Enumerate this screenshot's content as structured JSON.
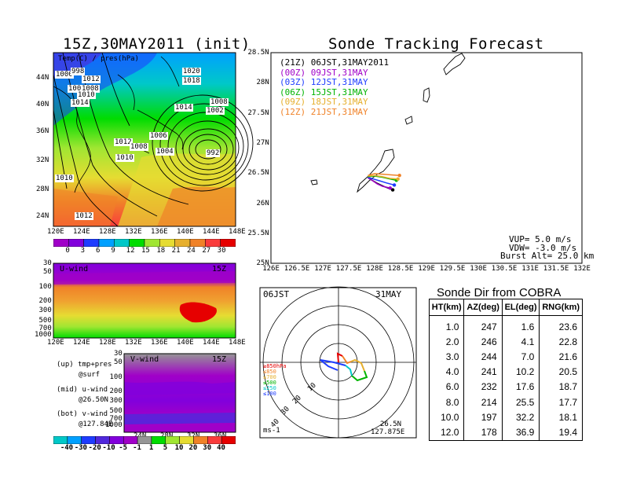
{
  "map_panel": {
    "title": "15Z,30MAY2011 (init)",
    "label": "Temp(C) / pres(hPa)",
    "isobar_labels": [
      "1000",
      "998",
      "1012",
      "1006",
      "1008",
      "1010",
      "1014",
      "1020",
      "1018",
      "1014",
      "1008",
      "1002",
      "992",
      "1012",
      "1008",
      "1006",
      "1004",
      "1010",
      "1010",
      "1012"
    ],
    "lat_ticks": [
      "44N",
      "40N",
      "36N",
      "32N",
      "28N",
      "24N"
    ],
    "lon_ticks": [
      "120E",
      "124E",
      "128E",
      "132E",
      "136E",
      "140E",
      "144E",
      "148E"
    ],
    "colorbar_labels": [
      "0",
      "3",
      "6",
      "9",
      "12",
      "15",
      "18",
      "21",
      "24",
      "27",
      "30"
    ],
    "colorbar_colors": [
      "#a000c8",
      "#8200dc",
      "#1e3cff",
      "#00a0ff",
      "#00c8c8",
      "#00dc00",
      "#a0e632",
      "#e6dc32",
      "#e6af2d",
      "#f08228",
      "#fa3c3c",
      "#e60000"
    ]
  },
  "uwind_panel": {
    "label": "U-wind",
    "time": "15Z",
    "pres_ticks": [
      "30",
      "50",
      "100",
      "200",
      "300",
      "500",
      "700",
      "1000"
    ],
    "lon_ticks": [
      "120E",
      "124E",
      "128E",
      "132E",
      "136E",
      "140E",
      "144E",
      "148E"
    ]
  },
  "vwind_panel": {
    "label": "V-wind",
    "time": "15Z",
    "pres_ticks": [
      "30",
      "50",
      "100",
      "200",
      "300",
      "500",
      "700",
      "1000"
    ],
    "lat_ticks": [
      "24N",
      "28N",
      "32N",
      "36N"
    ]
  },
  "legend_notes": [
    "(up) tmp+pres",
    "@surf",
    "(mid) u-wind",
    "@26.50N",
    "(bot) v-wind",
    "@127.84E"
  ],
  "wind_colorbar": {
    "labels": [
      "-40",
      "-30",
      "-20",
      "-10",
      "-5",
      "-1",
      "1",
      "5",
      "10",
      "20",
      "30",
      "40"
    ],
    "colors": [
      "#00c8c8",
      "#00a0ff",
      "#1e3cff",
      "#5028dc",
      "#8200dc",
      "#a000c8",
      "#969696",
      "#00dc00",
      "#a0e632",
      "#e6dc32",
      "#f08228",
      "#fa3c3c",
      "#e60000"
    ]
  },
  "tracking_panel": {
    "title": "Sonde Tracking Forecast",
    "lat_ticks": [
      "28.5N",
      "28N",
      "27.5N",
      "27N",
      "26.5N",
      "26N",
      "25.5N",
      "25N"
    ],
    "lon_ticks": [
      "126E",
      "126.5E",
      "127E",
      "127.5E",
      "128E",
      "128.5E",
      "129E",
      "129.5E",
      "130E",
      "130.5E",
      "131E",
      "131.5E",
      "132E"
    ],
    "legend": [
      {
        "text": "(21Z) 06JST,31MAY2011",
        "color": "#000000"
      },
      {
        "text": "(00Z) 09JST,31MAY",
        "color": "#a000c8"
      },
      {
        "text": "(03Z) 12JST,31MAY",
        "color": "#1e3cff"
      },
      {
        "text": "(06Z) 15JST,31MAY",
        "color": "#00b400"
      },
      {
        "text": "(09Z) 18JST,31MAY",
        "color": "#e6af2d"
      },
      {
        "text": "(12Z) 21JST,31MAY",
        "color": "#f08228"
      }
    ],
    "params": [
      "VUP= 5.0 m/s",
      "VDW= -3.0 m/s",
      "Burst Alt= 25.0 km"
    ]
  },
  "hodograph": {
    "time": "06JST",
    "date": "31MAY",
    "ring_labels": [
      "10",
      "20",
      "30",
      "40"
    ],
    "level_legend": [
      {
        "text": "≥850hPa",
        "color": "#e60000"
      },
      {
        "text": "≤850",
        "color": "#f08228"
      },
      {
        "text": "≤700",
        "color": "#e6af2d"
      },
      {
        "text": "≤500",
        "color": "#00b400"
      },
      {
        "text": "≤250",
        "color": "#00c8c8"
      },
      {
        "text": "≤100",
        "color": "#1e3cff"
      }
    ],
    "units": "ms-1",
    "location_lat": "26.5N",
    "location_lon": "127.875E"
  },
  "cobra_table": {
    "title": "Sonde Dir from COBRA",
    "headers": [
      "HT(km)",
      "AZ(deg)",
      "EL(deg)",
      "RNG(km)"
    ],
    "rows": [
      [
        "1.0",
        "247",
        "1.6",
        "23.6"
      ],
      [
        "2.0",
        "246",
        "4.1",
        "22.8"
      ],
      [
        "3.0",
        "244",
        "7.0",
        "21.6"
      ],
      [
        "4.0",
        "241",
        "10.2",
        "20.5"
      ],
      [
        "6.0",
        "232",
        "17.6",
        "18.7"
      ],
      [
        "8.0",
        "214",
        "25.5",
        "17.7"
      ],
      [
        "10.0",
        "197",
        "32.2",
        "18.1"
      ],
      [
        "12.0",
        "178",
        "36.9",
        "19.4"
      ]
    ]
  },
  "chart_data": [
    {
      "type": "heatmap",
      "title": "15Z,30MAY2011 (init)",
      "xlabel": "",
      "ylabel": "",
      "xlim": [
        120,
        150
      ],
      "ylim": [
        21,
        47
      ],
      "x_ticks": [
        "120E",
        "124E",
        "128E",
        "132E",
        "136E",
        "140E",
        "144E",
        "148E"
      ],
      "y_ticks": [
        "44N",
        "40N",
        "36N",
        "32N",
        "28N",
        "24N"
      ],
      "colorbar": [
        "0",
        "3",
        "6",
        "9",
        "12",
        "15",
        "18",
        "21",
        "24",
        "27",
        "30"
      ]
    },
    {
      "type": "line",
      "title": "Sonde Tracking Forecast",
      "xlim": [
        126,
        132
      ],
      "ylim": [
        25,
        28.5
      ],
      "series": [
        {
          "name": "(21Z) 06JST,31MAY2011",
          "x": [
            127.87,
            127.95,
            128.05,
            128.2,
            128.35
          ],
          "y": [
            26.42,
            26.38,
            26.33,
            26.27,
            26.22
          ]
        },
        {
          "name": "(00Z) 09JST,31MAY",
          "x": [
            127.87,
            127.95,
            128.05,
            128.15,
            128.3
          ],
          "y": [
            26.42,
            26.38,
            26.32,
            26.28,
            26.25
          ]
        },
        {
          "name": "(03Z) 12JST,31MAY",
          "x": [
            127.87,
            127.98,
            128.1,
            128.25,
            128.38
          ],
          "y": [
            26.43,
            26.4,
            26.37,
            26.33,
            26.3
          ]
        },
        {
          "name": "(06Z) 15JST,31MAY",
          "x": [
            127.87,
            128.0,
            128.15,
            128.3,
            128.42
          ],
          "y": [
            26.44,
            26.45,
            26.43,
            26.4,
            26.38
          ]
        },
        {
          "name": "(09Z) 18JST,31MAY",
          "x": [
            127.87,
            128.0,
            128.15,
            128.3,
            128.45
          ],
          "y": [
            26.45,
            26.46,
            26.44,
            26.41,
            26.4
          ]
        },
        {
          "name": "(12Z) 21JST,31MAY",
          "x": [
            127.87,
            128.0,
            128.15,
            128.32,
            128.48
          ],
          "y": [
            26.46,
            26.49,
            26.48,
            26.47,
            26.46
          ]
        }
      ]
    },
    {
      "type": "table",
      "title": "Sonde Dir from COBRA",
      "columns": [
        "HT(km)",
        "AZ(deg)",
        "EL(deg)",
        "RNG(km)"
      ],
      "rows": [
        [
          1.0,
          247,
          1.6,
          23.6
        ],
        [
          2.0,
          246,
          4.1,
          22.8
        ],
        [
          3.0,
          244,
          7.0,
          21.6
        ],
        [
          4.0,
          241,
          10.2,
          20.5
        ],
        [
          6.0,
          232,
          17.6,
          18.7
        ],
        [
          8.0,
          214,
          25.5,
          17.7
        ],
        [
          10.0,
          197,
          32.2,
          18.1
        ],
        [
          12.0,
          178,
          36.9,
          19.4
        ]
      ]
    }
  ]
}
